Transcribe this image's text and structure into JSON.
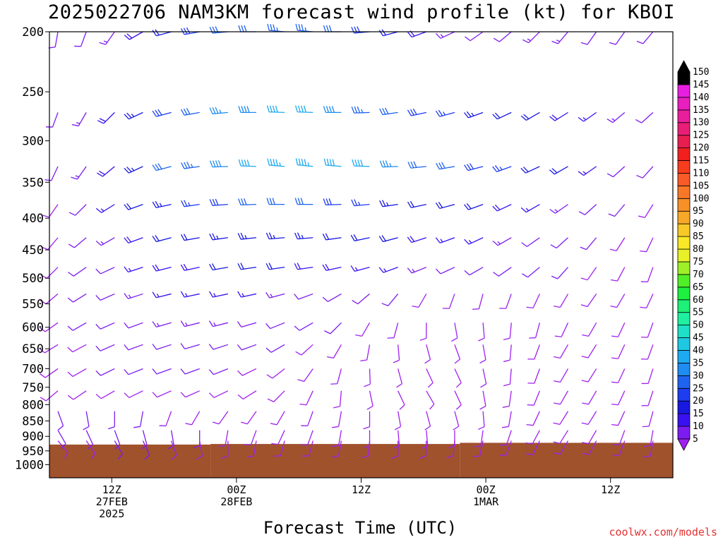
{
  "title": "2025022706 NAM3KM forecast wind profile (kt) for KBOI",
  "x_axis_title": "Forecast Time (UTC)",
  "credit": "coolwx.com/models",
  "colors": {
    "terrain": "#a0522d",
    "frame": "#000000",
    "credit": "#e53030"
  },
  "chart_data": {
    "type": "wind-barb time-height cross section",
    "y_axis": {
      "quantity": "pressure (mb)",
      "scale": "log",
      "range": [
        1050,
        200
      ],
      "ticks": [
        200,
        250,
        300,
        350,
        400,
        450,
        500,
        550,
        600,
        650,
        700,
        750,
        800,
        850,
        900,
        950,
        1000
      ]
    },
    "x_axis": {
      "unit": "forecast hour",
      "range": [
        0,
        60
      ],
      "ticks": [
        {
          "hour": 6,
          "label": [
            "12Z",
            "27FEB",
            "2025"
          ]
        },
        {
          "hour": 18,
          "label": [
            "00Z",
            "28FEB"
          ]
        },
        {
          "hour": 30,
          "label": [
            "12Z"
          ]
        },
        {
          "hour": 42,
          "label": [
            "00Z",
            "1MAR"
          ]
        },
        {
          "hour": 54,
          "label": [
            "12Z"
          ]
        }
      ]
    },
    "surface_pressure_segments": [
      {
        "hours": [
          0,
          15.5
        ],
        "pressure_mb": 928
      },
      {
        "hours": [
          15.5,
          39.5
        ],
        "pressure_mb": 926
      },
      {
        "hours": [
          39.5,
          60
        ],
        "pressure_mb": 922
      }
    ],
    "colorbar": {
      "unit": "kt",
      "levels": [
        5,
        10,
        15,
        20,
        25,
        30,
        35,
        40,
        45,
        50,
        55,
        60,
        65,
        70,
        75,
        80,
        85,
        90,
        95,
        100,
        105,
        110,
        115,
        120,
        125,
        130,
        135,
        140,
        145,
        150
      ],
      "colors": [
        "#a020f0",
        "#7c1cf0",
        "#3a10f0",
        "#1818e0",
        "#1e3cf0",
        "#1e64f0",
        "#1e8cf0",
        "#1eaaf0",
        "#1ec8e0",
        "#1ee0c8",
        "#1ef0a0",
        "#1ef078",
        "#1ef040",
        "#50f028",
        "#a0f028",
        "#e8f028",
        "#f8e828",
        "#f8c828",
        "#f8a828",
        "#f89028",
        "#f87828",
        "#f85a28",
        "#f83c1e",
        "#f0201e",
        "#e81e50",
        "#e81e78",
        "#e81e9c",
        "#e81ebe",
        "#e81ee0",
        "#000000"
      ]
    },
    "wind_barbs": {
      "units": "kt / deg from",
      "description": "speed/direction per level over time",
      "levels": [
        {
          "p": 200,
          "dir": [
            190,
            200,
            215,
            240,
            255,
            260,
            265,
            270,
            275,
            275,
            270,
            265,
            255,
            250,
            245,
            235,
            230,
            225,
            220,
            215,
            215,
            220
          ],
          "spd": [
            10,
            12,
            14,
            18,
            22,
            28,
            30,
            32,
            33,
            34,
            32,
            28,
            22,
            18,
            14,
            12,
            12,
            14,
            14,
            12,
            12,
            10
          ]
        },
        {
          "p": 270,
          "dir": [
            200,
            210,
            225,
            245,
            255,
            260,
            265,
            270,
            272,
            272,
            270,
            268,
            262,
            258,
            255,
            250,
            245,
            240,
            238,
            235,
            230,
            228
          ],
          "spd": [
            10,
            14,
            18,
            24,
            28,
            32,
            36,
            38,
            40,
            40,
            38,
            34,
            30,
            28,
            26,
            24,
            22,
            20,
            18,
            16,
            14,
            12
          ]
        },
        {
          "p": 330,
          "dir": [
            205,
            215,
            230,
            245,
            255,
            262,
            268,
            272,
            275,
            276,
            275,
            272,
            268,
            264,
            260,
            255,
            250,
            245,
            240,
            235,
            228,
            222
          ],
          "spd": [
            10,
            14,
            18,
            24,
            30,
            34,
            38,
            42,
            44,
            44,
            42,
            40,
            36,
            32,
            30,
            28,
            26,
            22,
            20,
            16,
            12,
            10
          ]
        },
        {
          "p": 380,
          "dir": [
            215,
            225,
            238,
            250,
            258,
            262,
            266,
            268,
            270,
            270,
            268,
            265,
            262,
            258,
            255,
            250,
            245,
            240,
            235,
            228,
            220,
            212
          ],
          "spd": [
            8,
            12,
            16,
            20,
            24,
            26,
            28,
            30,
            30,
            30,
            28,
            26,
            24,
            22,
            20,
            20,
            18,
            16,
            14,
            12,
            10,
            8
          ]
        },
        {
          "p": 430,
          "dir": [
            220,
            230,
            240,
            250,
            255,
            260,
            262,
            264,
            265,
            265,
            262,
            258,
            255,
            252,
            250,
            245,
            240,
            235,
            228,
            220,
            212,
            205
          ],
          "spd": [
            8,
            10,
            14,
            18,
            20,
            22,
            24,
            24,
            24,
            24,
            22,
            20,
            20,
            18,
            16,
            16,
            14,
            12,
            10,
            10,
            8,
            8
          ]
        },
        {
          "p": 480,
          "dir": [
            225,
            235,
            245,
            252,
            256,
            258,
            260,
            262,
            262,
            262,
            258,
            255,
            250,
            248,
            245,
            240,
            235,
            230,
            222,
            215,
            208,
            200
          ],
          "spd": [
            8,
            10,
            12,
            16,
            18,
            18,
            20,
            20,
            20,
            18,
            18,
            16,
            16,
            14,
            12,
            12,
            10,
            10,
            10,
            8,
            8,
            8
          ]
        },
        {
          "p": 530,
          "dir": [
            230,
            238,
            246,
            252,
            256,
            258,
            258,
            258,
            255,
            250,
            240,
            230,
            220,
            210,
            200,
            195,
            200,
            205,
            210,
            215,
            210,
            205
          ],
          "spd": [
            8,
            10,
            12,
            14,
            16,
            16,
            16,
            16,
            14,
            12,
            10,
            10,
            10,
            8,
            8,
            8,
            8,
            8,
            8,
            8,
            8,
            8
          ]
        },
        {
          "p": 590,
          "dir": [
            235,
            240,
            246,
            250,
            254,
            256,
            256,
            254,
            248,
            240,
            225,
            210,
            195,
            180,
            170,
            175,
            185,
            195,
            205,
            210,
            205,
            200
          ],
          "spd": [
            8,
            10,
            12,
            12,
            14,
            14,
            14,
            12,
            12,
            10,
            10,
            8,
            8,
            8,
            8,
            8,
            8,
            8,
            8,
            8,
            8,
            8
          ]
        },
        {
          "p": 640,
          "dir": [
            238,
            242,
            246,
            250,
            252,
            254,
            252,
            250,
            240,
            228,
            210,
            190,
            175,
            165,
            160,
            170,
            185,
            200,
            210,
            212,
            205,
            200
          ],
          "spd": [
            8,
            8,
            10,
            12,
            12,
            12,
            12,
            10,
            10,
            8,
            8,
            8,
            8,
            8,
            8,
            8,
            8,
            8,
            8,
            8,
            8,
            8
          ]
        },
        {
          "p": 700,
          "dir": [
            235,
            240,
            244,
            248,
            250,
            250,
            248,
            244,
            232,
            215,
            195,
            178,
            165,
            155,
            155,
            168,
            185,
            200,
            210,
            212,
            205,
            198
          ],
          "spd": [
            8,
            8,
            10,
            10,
            10,
            10,
            10,
            8,
            8,
            8,
            8,
            8,
            8,
            8,
            8,
            8,
            8,
            8,
            8,
            8,
            8,
            8
          ]
        },
        {
          "p": 760,
          "dir": [
            230,
            236,
            240,
            244,
            246,
            246,
            244,
            238,
            225,
            205,
            185,
            168,
            155,
            150,
            155,
            170,
            188,
            202,
            210,
            210,
            205,
            198
          ],
          "spd": [
            8,
            8,
            8,
            8,
            8,
            8,
            8,
            8,
            8,
            8,
            8,
            8,
            8,
            8,
            8,
            8,
            8,
            8,
            8,
            8,
            8,
            8
          ]
        },
        {
          "p": 820,
          "dir": [
            160,
            170,
            180,
            190,
            200,
            210,
            215,
            215,
            210,
            200,
            190,
            180,
            170,
            165,
            165,
            175,
            190,
            205,
            212,
            212,
            205,
            195
          ],
          "spd": [
            10,
            10,
            10,
            10,
            8,
            8,
            8,
            8,
            8,
            8,
            8,
            8,
            8,
            8,
            8,
            8,
            8,
            8,
            8,
            8,
            8,
            8
          ]
        },
        {
          "p": 880,
          "dir": [
            150,
            155,
            160,
            165,
            170,
            180,
            190,
            200,
            205,
            200,
            190,
            180,
            175,
            175,
            180,
            188,
            198,
            208,
            212,
            210,
            200,
            190
          ],
          "spd": [
            10,
            10,
            12,
            12,
            10,
            10,
            8,
            8,
            8,
            8,
            8,
            8,
            8,
            8,
            8,
            8,
            8,
            8,
            8,
            8,
            8,
            8
          ]
        },
        {
          "p": 915,
          "dir": [
            140,
            145,
            150,
            155,
            160,
            170,
            180,
            190,
            195,
            195,
            190,
            185,
            180,
            182,
            186,
            192,
            200,
            206,
            210,
            208,
            200,
            190
          ],
          "spd": [
            8,
            8,
            10,
            10,
            8,
            8,
            8,
            8,
            8,
            8,
            8,
            8,
            8,
            8,
            8,
            8,
            8,
            8,
            8,
            8,
            8,
            8
          ]
        }
      ]
    }
  }
}
